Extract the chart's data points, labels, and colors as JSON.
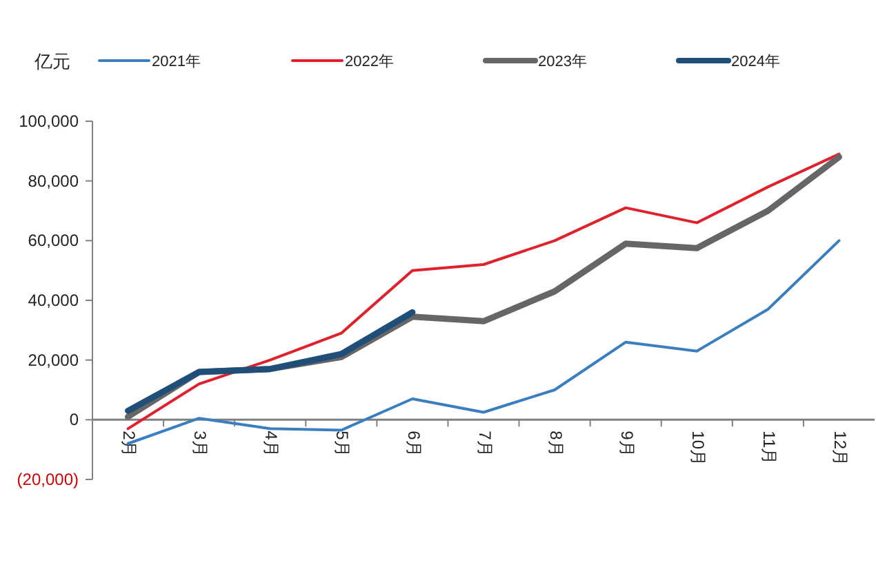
{
  "chart_data": {
    "type": "line",
    "ylabel": "亿元",
    "categories": [
      "2月",
      "3月",
      "4月",
      "5月",
      "6月",
      "7月",
      "8月",
      "9月",
      "10月",
      "11月",
      "12月"
    ],
    "series": [
      {
        "name": "2021年",
        "color": "#3a7ebf",
        "values": [
          -8000,
          500,
          -3000,
          -3500,
          7000,
          2500,
          10000,
          26000,
          23000,
          37000,
          60000
        ]
      },
      {
        "name": "2022年",
        "color": "#e0202a",
        "values": [
          -3000,
          12000,
          20000,
          29000,
          50000,
          52000,
          60000,
          71000,
          66000,
          78000,
          89000
        ]
      },
      {
        "name": "2023年",
        "color": "#666666",
        "values": [
          1000,
          16000,
          17000,
          21000,
          34500,
          33000,
          43000,
          59000,
          57500,
          70000,
          88000
        ]
      },
      {
        "name": "2024年",
        "color": "#1f4e79",
        "values": [
          3000,
          16000,
          17000,
          22000,
          36000,
          null,
          null,
          null,
          null,
          null,
          null
        ]
      }
    ],
    "ylim": [
      -20000,
      100000
    ],
    "yticks": [
      {
        "value": -20000,
        "label": "(20,000)"
      },
      {
        "value": 0,
        "label": "0"
      },
      {
        "value": 20000,
        "label": "20,000"
      },
      {
        "value": 40000,
        "label": "40,000"
      },
      {
        "value": 60000,
        "label": "60,000"
      },
      {
        "value": 80000,
        "label": "80,000"
      },
      {
        "value": 100000,
        "label": "100,000"
      }
    ],
    "legend": "top",
    "marker": "none",
    "line_style": "solid"
  }
}
